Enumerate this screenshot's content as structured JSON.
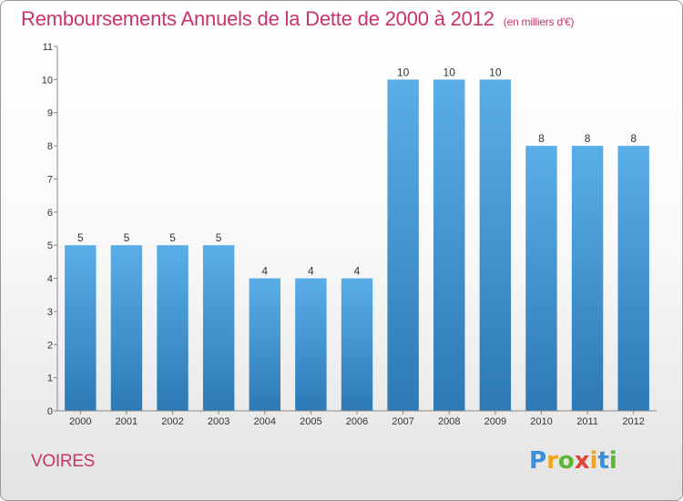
{
  "title": "Remboursements Annuels de la Dette de 2000 à 2012",
  "subtitle": "(en milliers d'€)",
  "commune": "VOIRES",
  "logo": {
    "text": "Proxiti",
    "letters": [
      {
        "ch": "P",
        "color": "#3a8fd6"
      },
      {
        "ch": "r",
        "color": "#f2a51c"
      },
      {
        "ch": "o",
        "color": "#5fb531"
      },
      {
        "ch": "x",
        "color": "#e0443a"
      },
      {
        "ch": "i",
        "color": "#f2a51c"
      },
      {
        "ch": "t",
        "color": "#3a8fd6"
      },
      {
        "ch": "i",
        "color": "#5fb531"
      }
    ]
  },
  "colors": {
    "title": "#c8336b",
    "bar_top": "#5aaee8",
    "bar_bottom": "#2c79b5",
    "axis": "#888888",
    "text": "#333333"
  },
  "chart_data": {
    "type": "bar",
    "categories": [
      "2000",
      "2001",
      "2002",
      "2003",
      "2004",
      "2005",
      "2006",
      "2007",
      "2008",
      "2009",
      "2010",
      "2011",
      "2012"
    ],
    "values": [
      5,
      5,
      5,
      5,
      4,
      4,
      4,
      10,
      10,
      10,
      8,
      8,
      8
    ],
    "ylim": [
      0,
      11
    ],
    "yticks": [
      0,
      1,
      2,
      3,
      4,
      5,
      6,
      7,
      8,
      9,
      10,
      11
    ],
    "xlabel": "",
    "ylabel": "",
    "grid": false,
    "data_labels": true
  }
}
